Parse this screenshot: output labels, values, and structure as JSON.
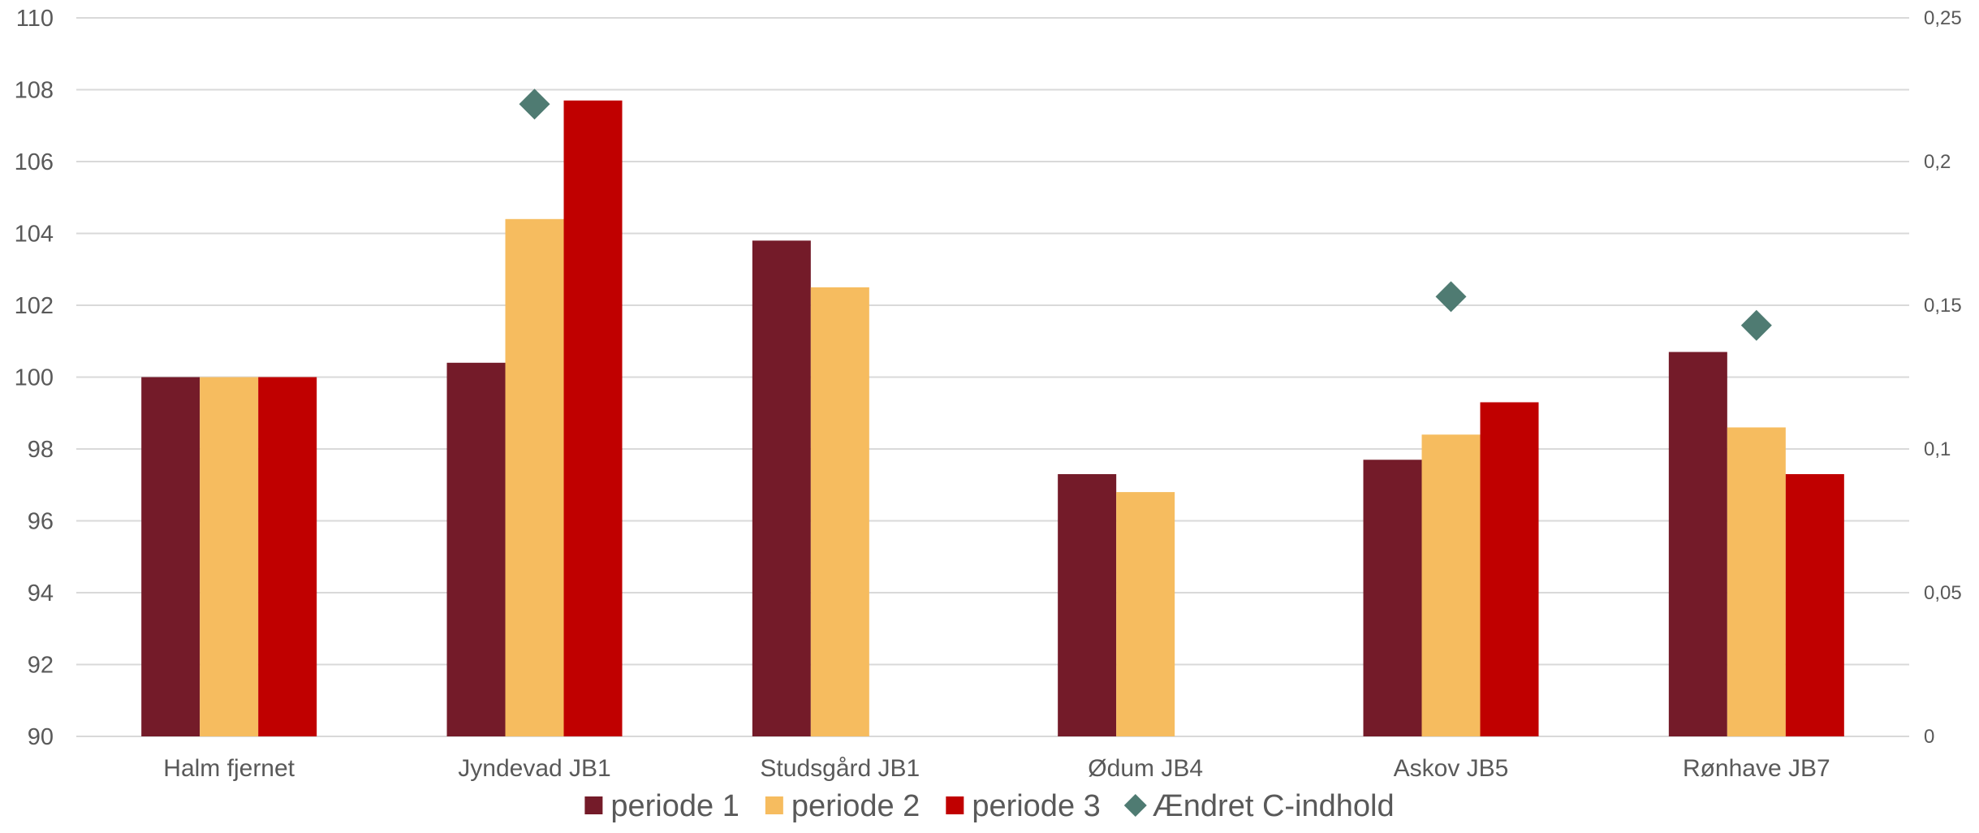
{
  "chart_data": {
    "type": "bar",
    "categories": [
      "Halm fjernet",
      "Jyndevad JB1",
      "Studsgård JB1",
      "Ødum JB4",
      "Askov JB5",
      "Rønhave JB7"
    ],
    "series": [
      {
        "name": "periode 1",
        "axis": "left",
        "color": "#741b29",
        "values": [
          100,
          100.4,
          103.8,
          97.3,
          97.7,
          100.7
        ]
      },
      {
        "name": "periode 2",
        "axis": "left",
        "color": "#f6bc5f",
        "values": [
          100,
          104.4,
          102.5,
          96.8,
          98.4,
          98.6
        ]
      },
      {
        "name": "periode 3",
        "axis": "left",
        "color": "#c00000",
        "values": [
          100,
          107.7,
          null,
          null,
          99.3,
          97.3
        ]
      },
      {
        "name": "Ændret C-indhold",
        "axis": "right",
        "marker": "diamond",
        "color": "#4f7b72",
        "values": [
          null,
          0.22,
          null,
          null,
          0.153,
          0.143
        ]
      }
    ],
    "y_left": {
      "ylim": [
        90,
        110
      ],
      "ticks": [
        "90",
        "92",
        "94",
        "96",
        "98",
        "100",
        "102",
        "104",
        "106",
        "108",
        "110"
      ]
    },
    "y_right": {
      "ylim": [
        0,
        0.25
      ],
      "ticks": [
        "0",
        "0,05",
        "0,1",
        "0,15",
        "0,2",
        "0,25"
      ]
    },
    "grid": true,
    "legend_position": "bottom"
  }
}
